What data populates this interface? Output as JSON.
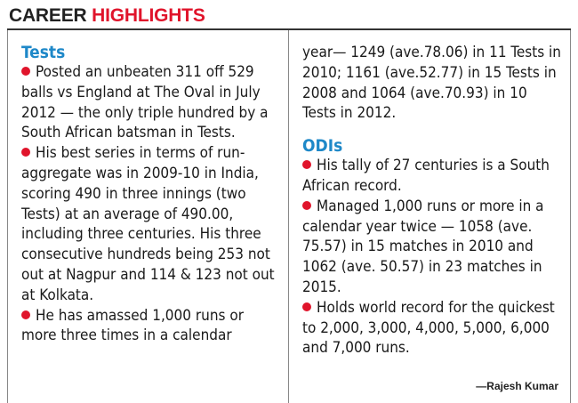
{
  "header": {
    "title_part1": "CAREER ",
    "title_part2": "HIGHLIGHTS"
  },
  "tests": {
    "title": "Tests",
    "items": [
      "Posted an unbeaten 311 off 529 balls vs England at The Oval in July 2012 — the only triple hundred by a South African batsman in Tests.",
      "His best series in terms of run-aggregate was in 2009-10 in India, scoring 490 in three innings (two Tests) at an average of 490.00, including three centuries. His three consecutive hundreds being 253 not out at Nagpur and 114 & 123 not out at Kolkata.",
      "He has amassed 1,000 runs or more three times in a calendar"
    ],
    "continuation": "year— 1249 (ave.78.06) in 11 Tests in 2010; 1161 (ave.52.77) in 15 Tests in 2008 and 1064 (ave.70.93) in 10 Tests in 2012."
  },
  "odis": {
    "title": "ODIs",
    "items": [
      "His tally of 27 centuries is a South African record.",
      "Managed 1,000 runs or more in a calendar year twice — 1058 (ave. 75.57) in 15 matches in 2010 and 1062 (ave. 50.57) in 23 matches in 2015.",
      "Holds world record for the quickest to 2,000, 3,000, 4,000, 5,000, 6,000 and 7,000 runs."
    ]
  },
  "byline": "—Rajesh Kumar",
  "colors": {
    "accent_red": "#e0142b",
    "section_blue": "#1e88c8"
  }
}
